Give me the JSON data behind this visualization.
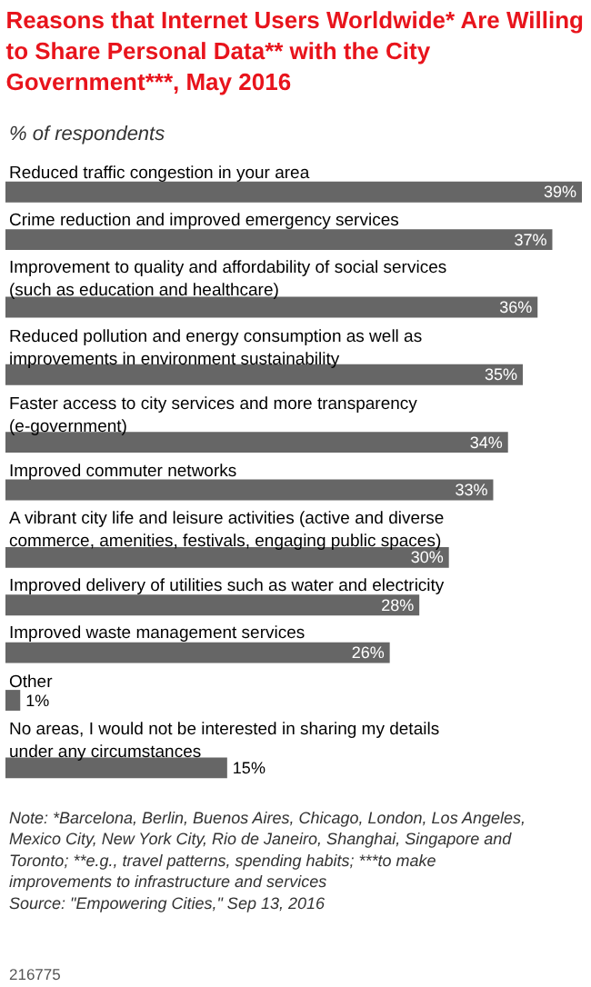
{
  "chart_data": {
    "type": "bar",
    "orientation": "horizontal",
    "title": "Reasons that Internet Users Worldwide* Are Willing to Share Personal Data** with the City Government***, May 2016",
    "subtitle": "% of respondents",
    "categories": [
      "Reduced traffic congestion in your area",
      "Crime reduction and improved emergency services",
      "Improvement to quality and affordability of social services (such as education and healthcare)",
      "Reduced pollution and energy consumption as well as improvements in environment sustainability",
      "Faster access to city services and more transparency (e-government)",
      "Improved commuter networks",
      "A vibrant city life and leisure activities (active and diverse commerce, amenities, festivals, engaging public spaces)",
      "Improved delivery of utilities such as water and electricity",
      "Improved waste management services",
      "Other",
      "No areas, I would not be interested in sharing my details under any circumstances"
    ],
    "values": [
      39,
      37,
      36,
      35,
      34,
      33,
      30,
      28,
      26,
      1,
      15
    ],
    "value_labels": [
      "39%",
      "37%",
      "36%",
      "35%",
      "34%",
      "33%",
      "30%",
      "28%",
      "26%",
      "1%",
      "15%"
    ],
    "color": "#666666",
    "legend": false,
    "annotations": [
      "Note: *Barcelona, Berlin, Buenos Aires, Chicago, London, Los Angeles, Mexico City, New York City, Rio de Janeiro, Shanghai, Singapore and Toronto; **e.g., travel patterns, spending habits; ***to make improvements to infrastructure and services",
      "Source: \"Empowering Cities,\" Sep 13, 2016",
      "216775"
    ]
  }
}
